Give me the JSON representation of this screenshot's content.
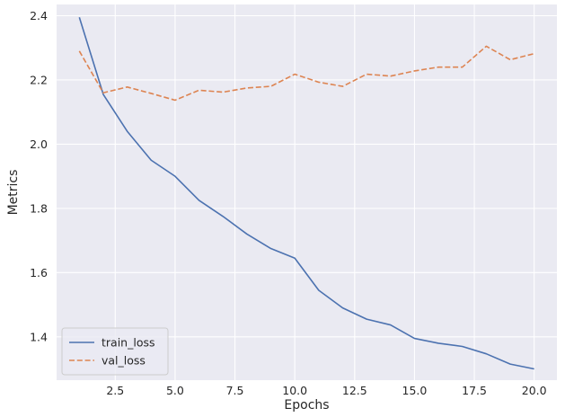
{
  "chart_data": {
    "type": "line",
    "title": "",
    "xlabel": "Epochs",
    "ylabel": "Metrics",
    "xlim": [
      0.05,
      20.95
    ],
    "ylim": [
      1.265,
      2.435
    ],
    "x_ticks": [
      2.5,
      5.0,
      7.5,
      10.0,
      12.5,
      15.0,
      17.5,
      20.0
    ],
    "x_tick_labels": [
      "2.5",
      "5.0",
      "7.5",
      "10.0",
      "12.5",
      "15.0",
      "17.5",
      "20.0"
    ],
    "y_ticks": [
      1.4,
      1.6,
      1.8,
      2.0,
      2.2,
      2.4
    ],
    "y_tick_labels": [
      "1.4",
      "1.6",
      "1.8",
      "2.0",
      "2.2",
      "2.4"
    ],
    "grid": true,
    "legend_position": "lower-left",
    "x": [
      1,
      2,
      3,
      4,
      5,
      6,
      7,
      8,
      9,
      10,
      11,
      12,
      13,
      14,
      15,
      16,
      17,
      18,
      19,
      20
    ],
    "series": [
      {
        "name": "train_loss",
        "color": "#4c72b0",
        "dash": "solid",
        "values": [
          2.395,
          2.155,
          2.04,
          1.95,
          1.9,
          1.825,
          1.775,
          1.72,
          1.675,
          1.645,
          1.545,
          1.49,
          1.455,
          1.437,
          1.395,
          1.38,
          1.37,
          1.347,
          1.315,
          1.3
        ]
      },
      {
        "name": "val_loss",
        "color": "#dd8452",
        "dash": "dashed",
        "values": [
          2.29,
          2.16,
          2.178,
          2.158,
          2.137,
          2.168,
          2.162,
          2.175,
          2.18,
          2.218,
          2.193,
          2.18,
          2.218,
          2.212,
          2.228,
          2.24,
          2.24,
          2.305,
          2.263,
          2.282
        ]
      }
    ]
  }
}
